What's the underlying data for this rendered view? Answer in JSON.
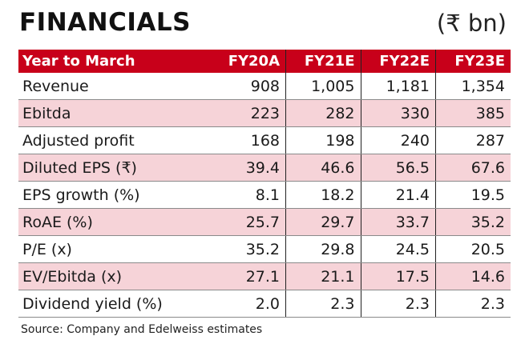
{
  "title": "FINANCIALS",
  "unit": "(₹ bn)",
  "source": "Source: Company and Edelweiss estimates",
  "colors": {
    "header": "#c8001a",
    "alt_row": "#f6d3d8"
  },
  "chart_data": {
    "type": "table",
    "title": "FINANCIALS",
    "columns": [
      "Year to March",
      "FY20A",
      "FY21E",
      "FY22E",
      "FY23E"
    ],
    "rows": [
      [
        "Revenue",
        "908",
        "1,005",
        "1,181",
        "1,354"
      ],
      [
        "Ebitda",
        "223",
        "282",
        "330",
        "385"
      ],
      [
        "Adjusted profit",
        "168",
        "198",
        "240",
        "287"
      ],
      [
        "Diluted EPS (₹)",
        "39.4",
        "46.6",
        "56.5",
        "67.6"
      ],
      [
        "EPS growth (%)",
        "8.1",
        "18.2",
        "21.4",
        "19.5"
      ],
      [
        "RoAE (%)",
        "25.7",
        "29.7",
        "33.7",
        "35.2"
      ],
      [
        "P/E (x)",
        "35.2",
        "29.8",
        "24.5",
        "20.5"
      ],
      [
        "EV/Ebitda (x)",
        "27.1",
        "21.1",
        "17.5",
        "14.6"
      ],
      [
        "Dividend yield (%)",
        "2.0",
        "2.3",
        "2.3",
        "2.3"
      ]
    ]
  }
}
